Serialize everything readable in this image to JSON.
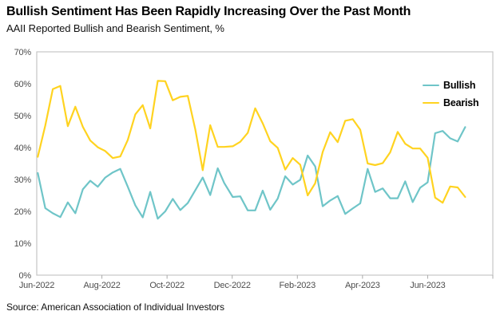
{
  "header": {
    "title": "Bullish Sentiment Has Been Rapidly Increasing Over the Past Month",
    "subtitle": "AAII Reported Bullish and Bearish Sentiment, %"
  },
  "footer": {
    "source": "Source: American Association of Individual Investors"
  },
  "chart_data": {
    "type": "line",
    "title": "Bullish Sentiment Has Been Rapidly Increasing Over the Past Month",
    "subtitle": "AAII Reported Bullish and Bearish Sentiment, %",
    "x": [
      "2022-06-02",
      "2022-06-09",
      "2022-06-16",
      "2022-06-23",
      "2022-06-30",
      "2022-07-07",
      "2022-07-14",
      "2022-07-21",
      "2022-07-28",
      "2022-08-04",
      "2022-08-11",
      "2022-08-18",
      "2022-08-25",
      "2022-09-01",
      "2022-09-08",
      "2022-09-15",
      "2022-09-22",
      "2022-09-29",
      "2022-10-06",
      "2022-10-13",
      "2022-10-20",
      "2022-10-27",
      "2022-11-03",
      "2022-11-10",
      "2022-11-17",
      "2022-11-23",
      "2022-12-01",
      "2022-12-08",
      "2022-12-15",
      "2022-12-22",
      "2022-12-29",
      "2023-01-05",
      "2023-01-12",
      "2023-01-19",
      "2023-01-26",
      "2023-02-02",
      "2023-02-09",
      "2023-02-16",
      "2023-02-23",
      "2023-03-02",
      "2023-03-09",
      "2023-03-16",
      "2023-03-23",
      "2023-03-30",
      "2023-04-06",
      "2023-04-13",
      "2023-04-20",
      "2023-04-27",
      "2023-05-04",
      "2023-05-11",
      "2023-05-18",
      "2023-05-25",
      "2023-06-01",
      "2023-06-08",
      "2023-06-15",
      "2023-06-22",
      "2023-06-29",
      "2023-07-06"
    ],
    "series": [
      {
        "name": "Bullish",
        "color": "#6FC5C8",
        "values": [
          32.0,
          21.0,
          19.4,
          18.2,
          22.8,
          19.4,
          26.9,
          29.6,
          27.7,
          30.6,
          32.2,
          33.3,
          27.7,
          21.9,
          18.1,
          26.1,
          17.7,
          20.0,
          23.9,
          20.4,
          22.6,
          26.6,
          30.6,
          25.1,
          33.5,
          28.9,
          24.5,
          24.7,
          20.3,
          20.3,
          26.5,
          20.5,
          24.0,
          31.0,
          28.4,
          29.9,
          37.5,
          34.1,
          21.6,
          23.4,
          24.8,
          19.2,
          20.9,
          22.5,
          33.3,
          26.1,
          27.2,
          24.1,
          24.1,
          29.4,
          22.9,
          27.4,
          29.1,
          44.5,
          45.2,
          42.9,
          41.9,
          46.4
        ]
      },
      {
        "name": "Bearish",
        "color": "#FFD320",
        "values": [
          37.1,
          46.9,
          58.3,
          59.3,
          46.7,
          52.8,
          46.5,
          42.2,
          40.1,
          38.9,
          36.7,
          37.2,
          42.4,
          50.4,
          53.3,
          46.0,
          60.9,
          60.8,
          54.8,
          55.9,
          56.2,
          45.7,
          32.9,
          47.0,
          40.2,
          40.2,
          40.4,
          41.8,
          44.6,
          52.3,
          47.6,
          42.0,
          39.9,
          33.1,
          36.7,
          34.6,
          25.0,
          28.8,
          38.6,
          44.8,
          41.7,
          48.4,
          48.9,
          45.6,
          35.0,
          34.5,
          35.1,
          38.5,
          44.9,
          41.2,
          39.7,
          39.7,
          36.8,
          24.3,
          22.7,
          27.8,
          27.5,
          24.5
        ]
      }
    ],
    "ylim": [
      0,
      70
    ],
    "ytick_labels": [
      "0%",
      "10%",
      "20%",
      "30%",
      "40%",
      "50%",
      "60%",
      "70%"
    ],
    "xtick_labels": [
      "Jun-2022",
      "Aug-2022",
      "Oct-2022",
      "Dec-2022",
      "Feb-2023",
      "Apr-2023",
      "Jun-2023"
    ],
    "grid": false,
    "legend_position": "top-right"
  }
}
